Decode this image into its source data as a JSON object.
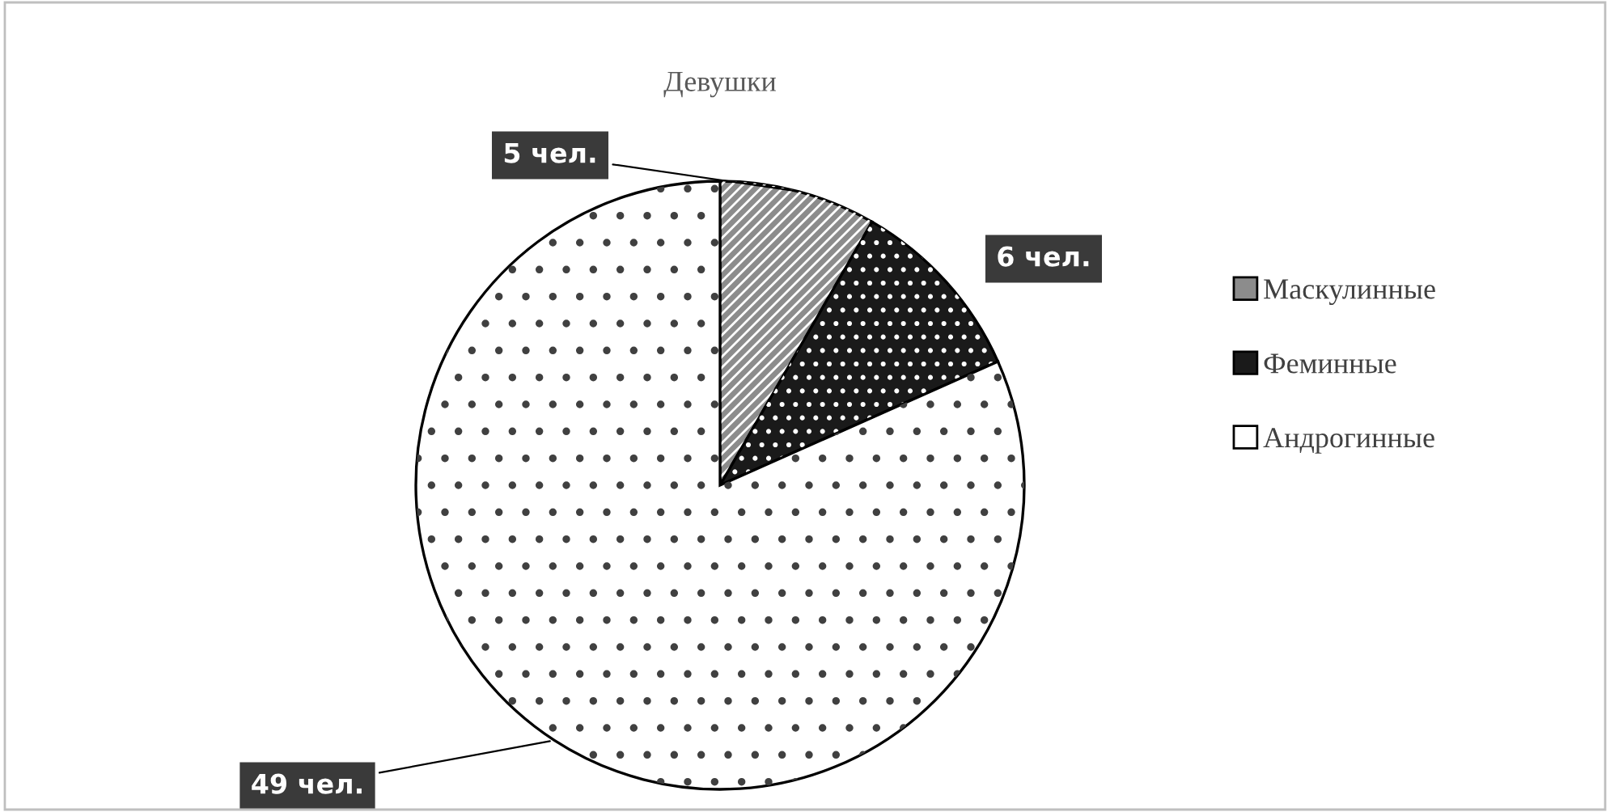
{
  "chart_data": {
    "type": "pie",
    "title": "Девушки",
    "categories": [
      "Маскулинные",
      "Феминные",
      "Андрогинные"
    ],
    "values": [
      5,
      6,
      49
    ],
    "colors": [
      "#8c8c8c",
      "#1a1a1a",
      "#ffffff"
    ],
    "value_labels": [
      "5 чел.",
      "6 чел.",
      "49 чел."
    ],
    "legend": "right"
  }
}
